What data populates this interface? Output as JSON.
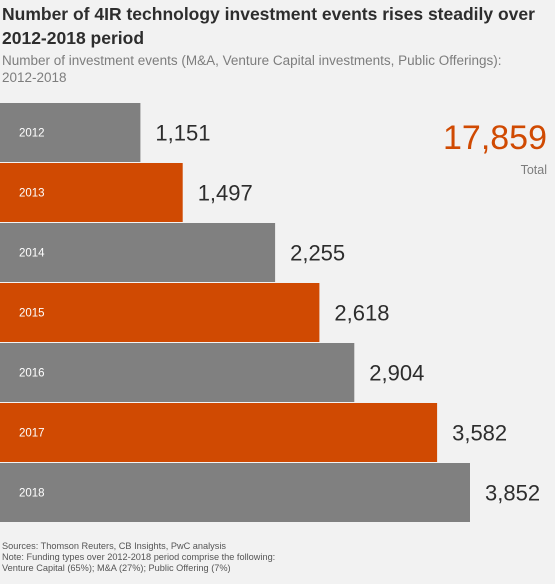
{
  "header": {
    "title": "Number of 4IR technology investment events rises steadily over 2012-2018 period",
    "subtitle": "Number of investment events (M&A, Venture Capital investments, Public Offerings): 2012-2018"
  },
  "total": {
    "value": "17,859",
    "label": "Total"
  },
  "colors": {
    "gray": "#808080",
    "orange": "#d04a02",
    "background": "#f2f2f2"
  },
  "chart_data": {
    "type": "bar",
    "orientation": "horizontal",
    "categories": [
      "2012",
      "2013",
      "2014",
      "2015",
      "2016",
      "2017",
      "2018"
    ],
    "values": [
      1151,
      1497,
      2255,
      2618,
      2904,
      3582,
      3852
    ],
    "value_labels": [
      "1,151",
      "1,497",
      "2,255",
      "2,618",
      "2,904",
      "3,582",
      "3,852"
    ],
    "bar_colors": [
      "#808080",
      "#d04a02",
      "#808080",
      "#d04a02",
      "#808080",
      "#d04a02",
      "#808080"
    ],
    "grid": false
  },
  "footnotes": {
    "sources": "Sources: Thomson Reuters, CB Insights, PwC analysis",
    "note_line1": "Note: Funding types over 2012-2018 period comprise the following:",
    "note_line2": "Venture Capital (65%); M&A (27%); Public Offering (7%)"
  }
}
